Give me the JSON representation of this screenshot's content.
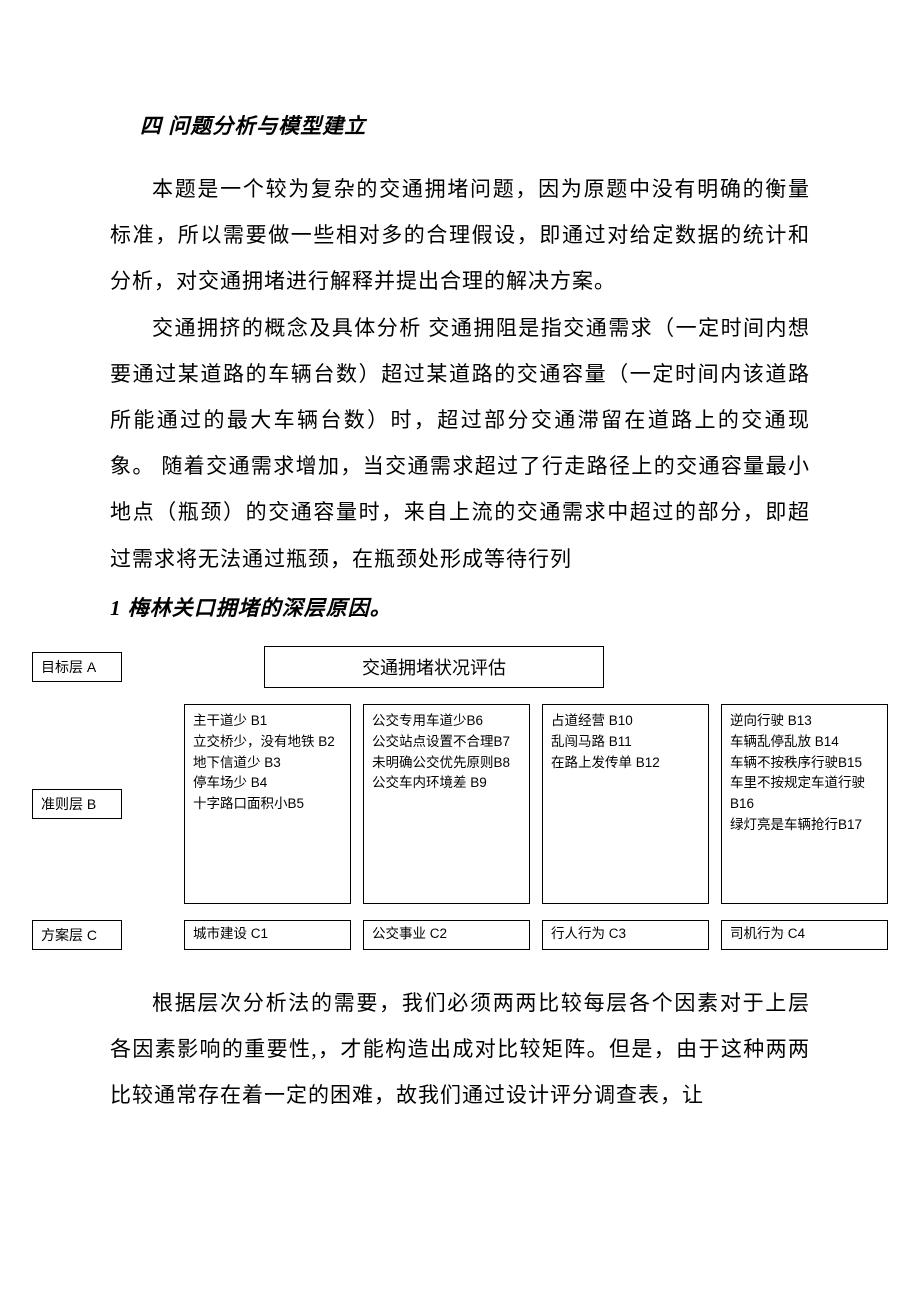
{
  "section_title": "四 问题分析与模型建立",
  "para1": "本题是一个较为复杂的交通拥堵问题，因为原题中没有明确的衡量标准，所以需要做一些相对多的合理假设，即通过对给定数据的统计和分析，对交通拥堵进行解释并提出合理的解决方案。",
  "para2": "交通拥挤的概念及具体分析 交通拥阻是指交通需求（一定时间内想要通过某道路的车辆台数）超过某道路的交通容量（一定时间内该道路所能通过的最大车辆台数）时，超过部分交通滞留在道路上的交通现象。 随着交通需求增加，当交通需求超过了行走路径上的交通容量最小地点（瓶颈）的交通容量时，来自上流的交通需求中超过的部分，即超过需求将无法通过瓶颈，在瓶颈处形成等待行列",
  "subsection_title": "1 梅林关口拥堵的深层原因。",
  "hierarchy": {
    "layer_a_label": "目标层 A",
    "layer_b_label": "准则层 B",
    "layer_c_label": "方案层 C",
    "target": "交通拥堵状况评估",
    "criteria": [
      {
        "lines": [
          "主干道少 B1",
          "立交桥少，没有地铁 B2",
          "地下信道少 B3",
          "停车场少 B4",
          "十字路口面积小B5"
        ]
      },
      {
        "lines": [
          "公交专用车道少B6",
          "公交站点设置不合理B7",
          "未明确公交优先原则B8",
          "公交车内环境差 B9"
        ]
      },
      {
        "lines": [
          "占道经营 B10",
          "乱闯马路 B11",
          "在路上发传单 B12"
        ]
      },
      {
        "lines": [
          "逆向行驶 B13",
          "车辆乱停乱放 B14",
          "车辆不按秩序行驶B15",
          "车里不按规定车道行驶 B16",
          "绿灯亮是车辆抢行B17"
        ]
      }
    ],
    "plans": [
      "城市建设 C1",
      "公交事业 C2",
      "行人行为 C3",
      "司机行为 C4"
    ]
  },
  "para3": "根据层次分析法的需要，我们必须两两比较每层各个因素对于上层各因素影响的重要性,，才能构造出成对比较矩阵。但是，由于这种两两比较通常存在着一定的困难，故我们通过设计评分调查表，让"
}
